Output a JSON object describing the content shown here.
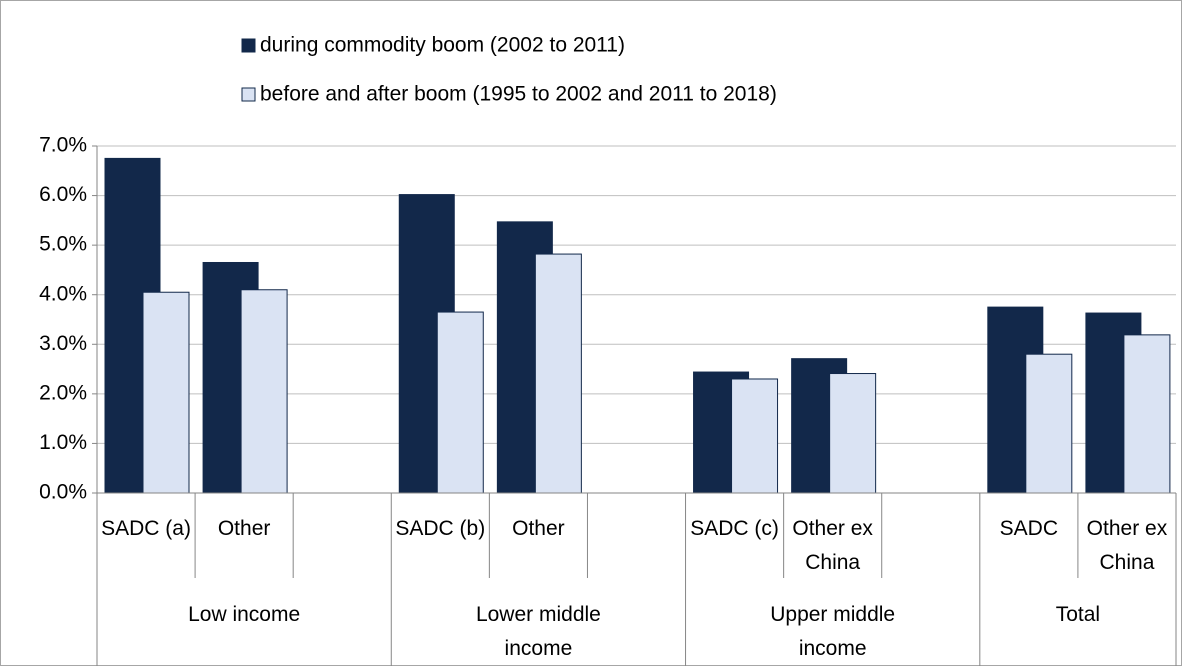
{
  "chart_data": {
    "type": "bar",
    "groups": [
      {
        "name": "Low income",
        "categories": [
          "SADC (a)",
          "Other",
          null
        ]
      },
      {
        "name": "Lower middle income",
        "categories": [
          "SADC (b)",
          "Other",
          null
        ]
      },
      {
        "name": "Upper middle income",
        "categories": [
          "SADC (c)",
          "Other ex China",
          null
        ]
      },
      {
        "name": "Total",
        "categories": [
          "SADC",
          "Other ex China"
        ]
      }
    ],
    "series": [
      {
        "name": "during commodity boom (2002 to 2011)",
        "color": "#12284a",
        "values": [
          6.75,
          4.65,
          null,
          6.02,
          5.47,
          null,
          2.44,
          2.71,
          null,
          3.75,
          3.63
        ]
      },
      {
        "name": "before and after boom (1995 to 2002 and 2011 to 2018)",
        "color": "#dae3f3",
        "values": [
          4.05,
          4.1,
          null,
          3.65,
          4.82,
          null,
          2.3,
          2.41,
          null,
          2.8,
          3.19
        ]
      }
    ],
    "ylim": [
      0,
      7
    ],
    "yticks": [
      {
        "value": 0,
        "label": "0.0%"
      },
      {
        "value": 1,
        "label": "1.0%"
      },
      {
        "value": 2,
        "label": "2.0%"
      },
      {
        "value": 3,
        "label": "3.0%"
      },
      {
        "value": 4,
        "label": "4.0%"
      },
      {
        "value": 5,
        "label": "5.0%"
      },
      {
        "value": 6,
        "label": "6.0%"
      },
      {
        "value": 7,
        "label": "7.0%"
      }
    ],
    "grid": true,
    "legend": "top"
  }
}
